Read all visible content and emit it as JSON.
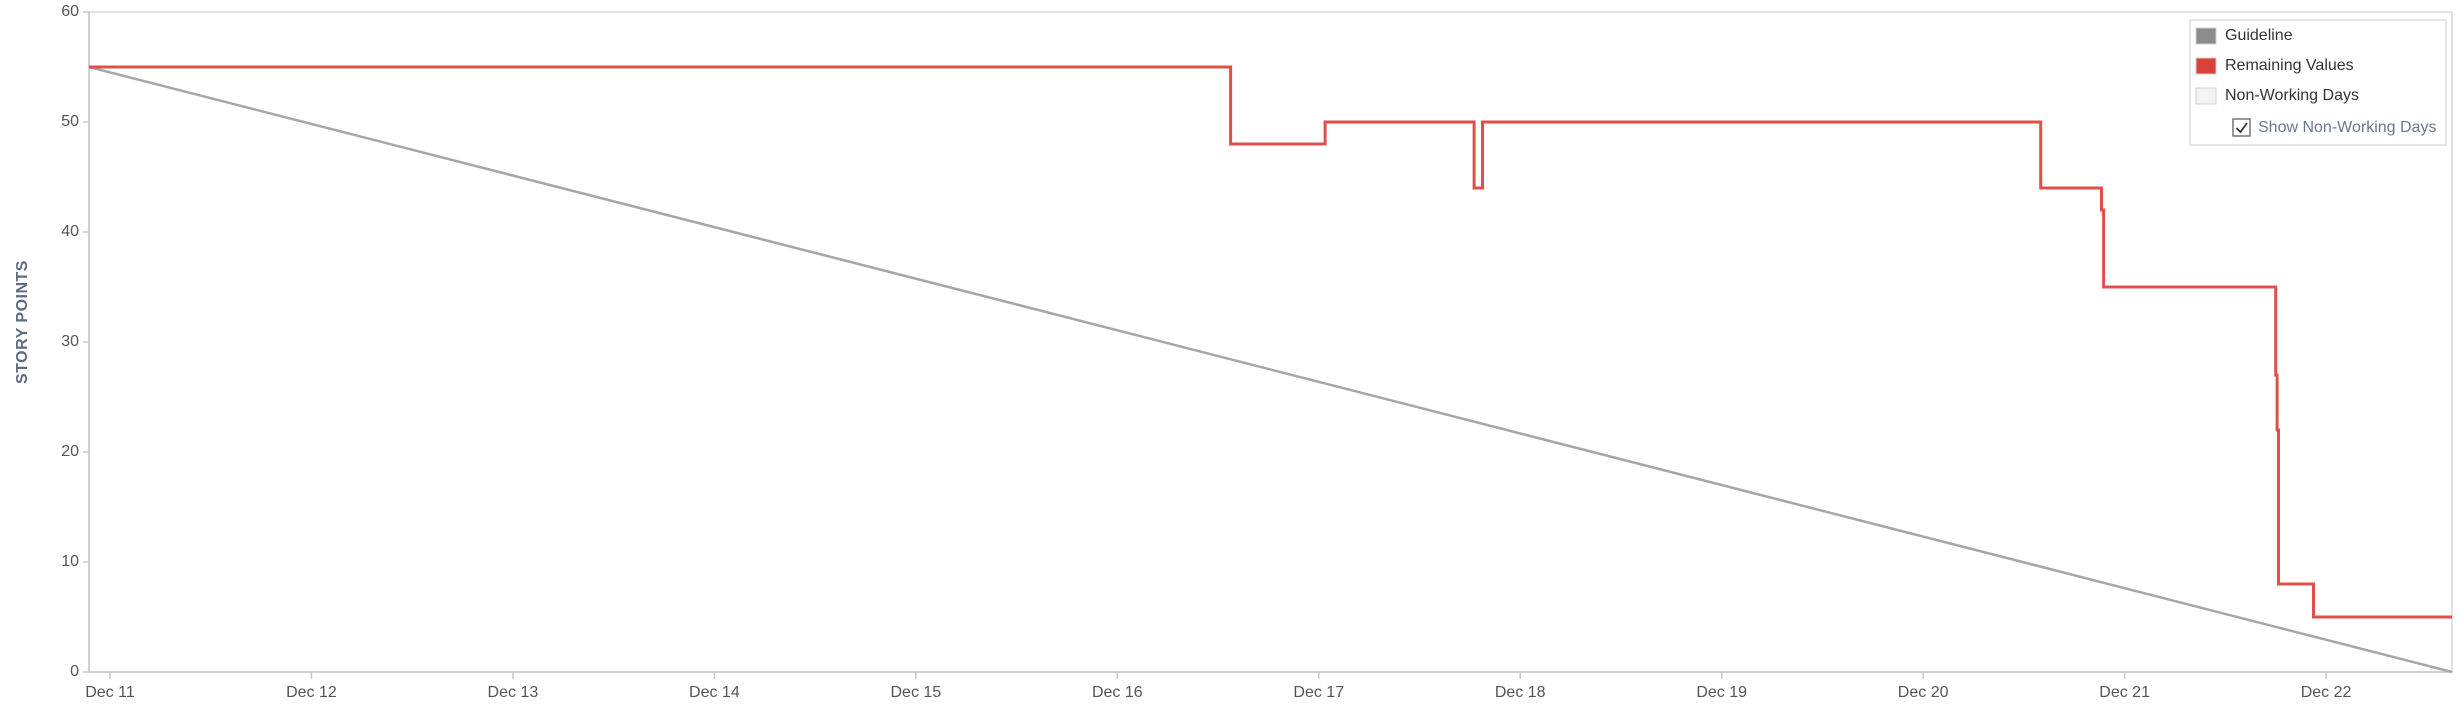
{
  "chart_data": {
    "type": "line",
    "title": "",
    "xlabel": "",
    "ylabel": "STORY POINTS",
    "ylim": [
      0,
      60
    ],
    "yticks": [
      0,
      10,
      20,
      30,
      40,
      50,
      60
    ],
    "xlim": [
      "Dec 10 21:30",
      "Dec 22 15:00"
    ],
    "xticks": [
      "Dec 11",
      "Dec 12",
      "Dec 13",
      "Dec 14",
      "Dec 15",
      "Dec 16",
      "Dec 17",
      "Dec 18",
      "Dec 19",
      "Dec 20",
      "Dec 21",
      "Dec 22"
    ],
    "grid": false,
    "legend_position": "top-right",
    "series": [
      {
        "name": "Guideline",
        "color": "#a6a6a6",
        "style": "line",
        "points": [
          {
            "x": "Dec 10 21:30",
            "y": 55
          },
          {
            "x": "Dec 22 15:00",
            "y": 0
          }
        ]
      },
      {
        "name": "Remaining Values",
        "color": "#e0504a",
        "style": "step",
        "points": [
          {
            "x": "Dec 10 21:30",
            "y": 55
          },
          {
            "x": "Dec 16 13:30",
            "y": 55
          },
          {
            "x": "Dec 16 13:30",
            "y": 48
          },
          {
            "x": "Dec 17 00:45",
            "y": 48
          },
          {
            "x": "Dec 17 00:45",
            "y": 50
          },
          {
            "x": "Dec 17 18:30",
            "y": 50
          },
          {
            "x": "Dec 17 18:30",
            "y": 44
          },
          {
            "x": "Dec 17 19:30",
            "y": 44
          },
          {
            "x": "Dec 17 19:30",
            "y": 50
          },
          {
            "x": "Dec 20 14:00",
            "y": 50
          },
          {
            "x": "Dec 20 14:00",
            "y": 44
          },
          {
            "x": "Dec 20 21:15",
            "y": 44
          },
          {
            "x": "Dec 20 21:15",
            "y": 42
          },
          {
            "x": "Dec 20 21:30",
            "y": 42
          },
          {
            "x": "Dec 20 21:30",
            "y": 35
          },
          {
            "x": "Dec 21 18:00",
            "y": 35
          },
          {
            "x": "Dec 21 18:00",
            "y": 27
          },
          {
            "x": "Dec 21 18:10",
            "y": 27
          },
          {
            "x": "Dec 21 18:10",
            "y": 22
          },
          {
            "x": "Dec 21 18:20",
            "y": 22
          },
          {
            "x": "Dec 21 18:20",
            "y": 8
          },
          {
            "x": "Dec 21 22:30",
            "y": 8
          },
          {
            "x": "Dec 21 22:30",
            "y": 5
          },
          {
            "x": "Dec 22 15:00",
            "y": 5
          }
        ]
      }
    ],
    "legend": [
      {
        "name": "Guideline",
        "swatch_color": "#8c8c8c"
      },
      {
        "name": "Remaining Values",
        "swatch_color": "#d9413b"
      },
      {
        "name": "Non-Working Days",
        "swatch_color": "#f3f3f3"
      }
    ],
    "toggle": {
      "label": "Show Non-Working Days",
      "checked": true
    }
  }
}
